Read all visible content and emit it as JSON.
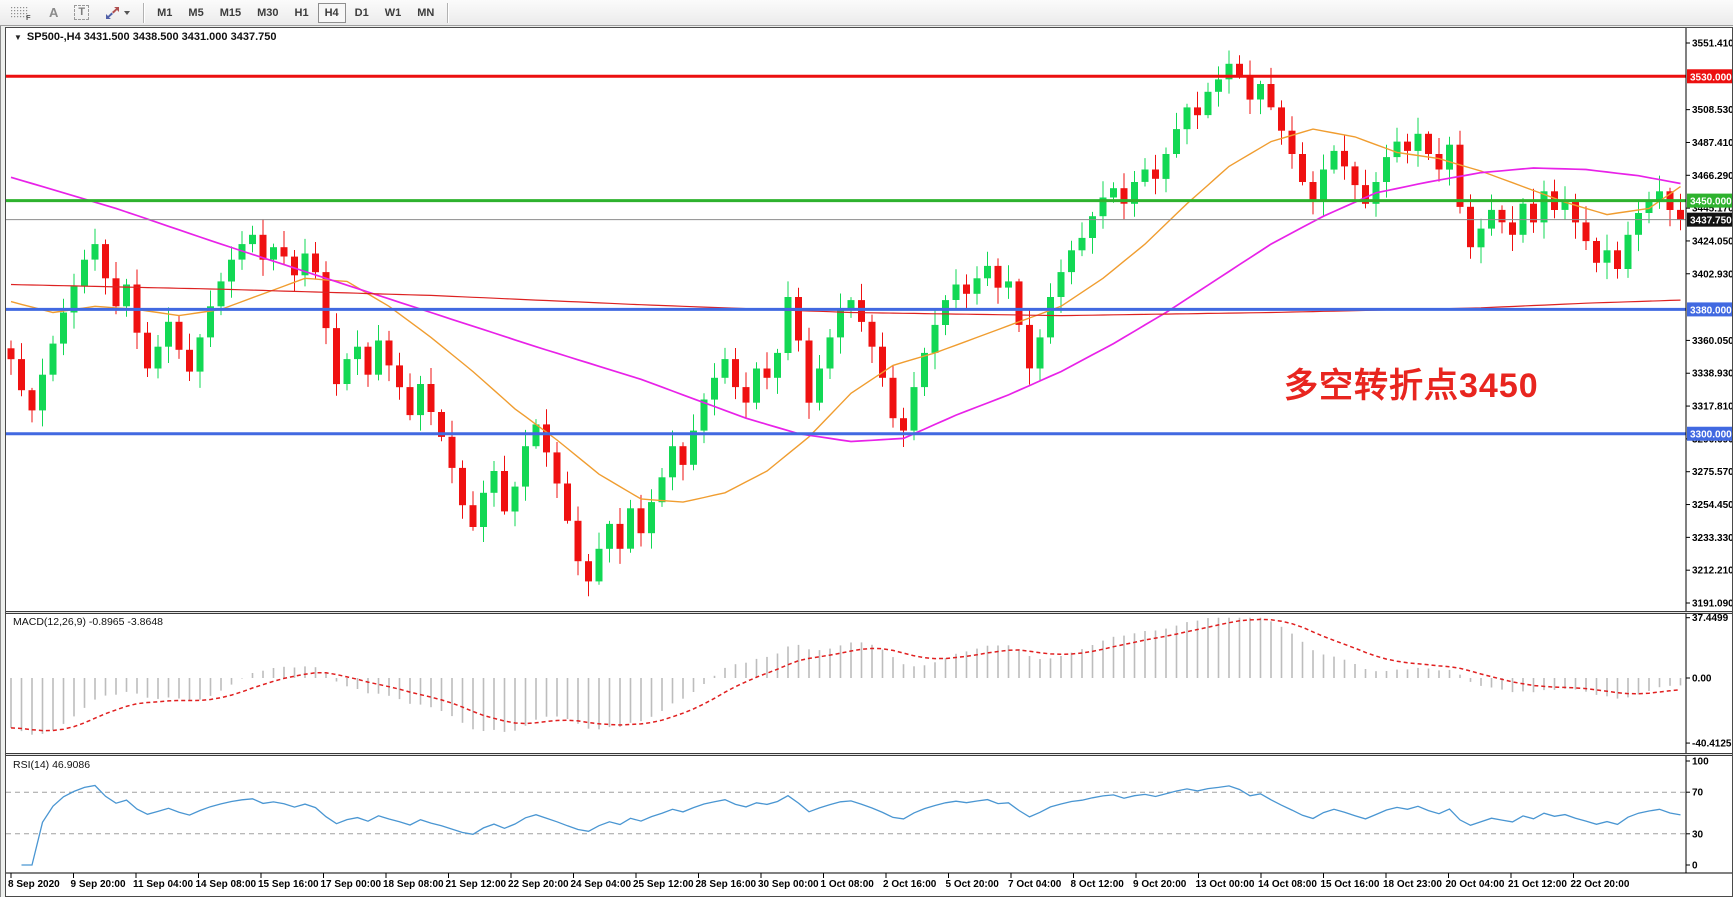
{
  "toolbar": {
    "tools": [
      {
        "name": "chart-grid-f-icon",
        "glyph": "F",
        "style": "grid"
      },
      {
        "name": "font-tool-icon",
        "glyph": "A",
        "style": "plain"
      },
      {
        "name": "text-label-tool-icon",
        "glyph": "T",
        "style": "boxed"
      },
      {
        "name": "arrow-objects-icon",
        "glyph": "",
        "style": "arrows",
        "caret": true
      }
    ],
    "timeframes": [
      "M1",
      "M5",
      "M15",
      "M30",
      "H1",
      "H4",
      "D1",
      "W1",
      "MN"
    ],
    "active_timeframe": "H4"
  },
  "chart": {
    "collapse_glyph": "▼",
    "title": "SP500-,H4  3431.500 3438.500 3431.000 3437.750",
    "symbol": "SP500-",
    "timeframe": "H4",
    "ohlc": {
      "open": "3431.500",
      "high": "3438.500",
      "low": "3431.000",
      "close": "3437.750"
    }
  },
  "indicators": {
    "macd_label": "MACD(12,26,9) -0.8965 -3.8648",
    "rsi_label": "RSI(14) 46.9086"
  },
  "annotation": {
    "text": "多空转折点3450",
    "color": "#e8251f"
  },
  "levels": [
    {
      "price": 3530.0,
      "label": "3530.000",
      "color": "#ec0f0f"
    },
    {
      "price": 3450.0,
      "label": "3450.000",
      "color": "#2eb22e"
    },
    {
      "price": 3380.0,
      "label": "3380.000",
      "color": "#4169e1"
    },
    {
      "price": 3300.0,
      "label": "3300.000",
      "color": "#4169e1"
    }
  ],
  "current_price": {
    "value": 3437.75,
    "label": "3437.750",
    "badge_bg": "#111111"
  },
  "colors": {
    "candle_up": "#12d854",
    "candle_down": "#ef1111",
    "ma_fast": "#f09d30",
    "ma_medium": "#e822e8",
    "ma_slow": "#dd2222",
    "macd_bars": "#bdbdbd",
    "macd_signal": "#e01f1f",
    "rsi_line": "#4a96d2",
    "current_line": "#8c8c8c",
    "axis_text": "#000000"
  },
  "axes": {
    "price_ticks": [
      "3551.410",
      "3508.530",
      "3487.410",
      "3466.290",
      "3445.170",
      "3424.050",
      "3402.930",
      "3360.050",
      "3338.930",
      "3317.810",
      "3296.690",
      "3275.570",
      "3254.450",
      "3233.330",
      "3212.210",
      "3191.090"
    ],
    "macd_ticks": [
      "37.4499",
      "0.00",
      "-40.4125"
    ],
    "rsi_ticks": [
      "100",
      "70",
      "30",
      "0"
    ]
  },
  "chart_data": {
    "type": "candlestick",
    "title": "SP500-,H4",
    "x_labels": [
      "8 Sep 2020",
      "9 Sep 20:00",
      "11 Sep 04:00",
      "14 Sep 08:00",
      "15 Sep 16:00",
      "17 Sep 00:00",
      "18 Sep 08:00",
      "21 Sep 12:00",
      "22 Sep 20:00",
      "24 Sep 04:00",
      "25 Sep 12:00",
      "28 Sep 16:00",
      "30 Sep 00:00",
      "1 Oct 08:00",
      "2 Oct 16:00",
      "5 Oct 20:00",
      "7 Oct 04:00",
      "8 Oct 12:00",
      "9 Oct 20:00",
      "13 Oct 00:00",
      "14 Oct 08:00",
      "15 Oct 16:00",
      "18 Oct 23:00",
      "20 Oct 04:00",
      "21 Oct 12:00",
      "22 Oct 20:00"
    ],
    "price_axis_range": [
      3191.09,
      3551.41
    ],
    "first_open": 3355,
    "closes": [
      3348,
      3328,
      3315,
      3338,
      3358,
      3378,
      3395,
      3412,
      3422,
      3400,
      3382,
      3396,
      3365,
      3342,
      3356,
      3372,
      3354,
      3340,
      3362,
      3382,
      3398,
      3412,
      3422,
      3428,
      3412,
      3420,
      3414,
      3402,
      3416,
      3404,
      3368,
      3332,
      3348,
      3356,
      3338,
      3360,
      3344,
      3330,
      3312,
      3332,
      3314,
      3298,
      3278,
      3254,
      3240,
      3262,
      3276,
      3250,
      3266,
      3292,
      3306,
      3288,
      3268,
      3244,
      3218,
      3205,
      3226,
      3242,
      3226,
      3252,
      3236,
      3256,
      3272,
      3292,
      3280,
      3302,
      3322,
      3336,
      3348,
      3330,
      3320,
      3342,
      3336,
      3352,
      3388,
      3360,
      3320,
      3342,
      3362,
      3380,
      3386,
      3372,
      3356,
      3336,
      3310,
      3302,
      3330,
      3352,
      3370,
      3386,
      3396,
      3390,
      3400,
      3408,
      3394,
      3398,
      3370,
      3342,
      3362,
      3388,
      3404,
      3418,
      3426,
      3440,
      3452,
      3458,
      3448,
      3462,
      3470,
      3464,
      3480,
      3496,
      3510,
      3505,
      3520,
      3528,
      3538,
      3530,
      3515,
      3525,
      3510,
      3495,
      3480,
      3462,
      3450,
      3470,
      3482,
      3472,
      3460,
      3448,
      3462,
      3478,
      3488,
      3482,
      3493,
      3480,
      3470,
      3486,
      3446,
      3420,
      3432,
      3444,
      3436,
      3428,
      3448,
      3436,
      3456,
      3444,
      3450,
      3436,
      3424,
      3410,
      3418,
      3406,
      3428,
      3442,
      3450,
      3456,
      3444,
      3437.75
    ],
    "moving_averages": [
      {
        "name": "ma-fast",
        "color_key": "ma_fast",
        "anchors": [
          [
            0,
            3385
          ],
          [
            4,
            3378
          ],
          [
            8,
            3382
          ],
          [
            12,
            3380
          ],
          [
            16,
            3376
          ],
          [
            20,
            3380
          ],
          [
            24,
            3390
          ],
          [
            28,
            3400
          ],
          [
            32,
            3398
          ],
          [
            36,
            3382
          ],
          [
            40,
            3362
          ],
          [
            44,
            3340
          ],
          [
            48,
            3316
          ],
          [
            52,
            3296
          ],
          [
            56,
            3274
          ],
          [
            60,
            3258
          ],
          [
            64,
            3256
          ],
          [
            68,
            3262
          ],
          [
            72,
            3276
          ],
          [
            76,
            3298
          ],
          [
            80,
            3326
          ],
          [
            84,
            3344
          ],
          [
            88,
            3352
          ],
          [
            92,
            3362
          ],
          [
            96,
            3372
          ],
          [
            100,
            3382
          ],
          [
            104,
            3400
          ],
          [
            108,
            3422
          ],
          [
            112,
            3448
          ],
          [
            116,
            3472
          ],
          [
            120,
            3488
          ],
          [
            124,
            3496
          ],
          [
            128,
            3491
          ],
          [
            132,
            3481
          ],
          [
            136,
            3477
          ],
          [
            140,
            3469
          ],
          [
            144,
            3459
          ],
          [
            148,
            3449
          ],
          [
            152,
            3441
          ],
          [
            156,
            3445
          ],
          [
            159,
            3459
          ]
        ]
      },
      {
        "name": "ma-medium",
        "color_key": "ma_medium",
        "anchors": [
          [
            0,
            3465
          ],
          [
            10,
            3445
          ],
          [
            20,
            3422
          ],
          [
            30,
            3400
          ],
          [
            40,
            3378
          ],
          [
            50,
            3356
          ],
          [
            60,
            3335
          ],
          [
            70,
            3310
          ],
          [
            75,
            3300
          ],
          [
            80,
            3295
          ],
          [
            85,
            3297
          ],
          [
            90,
            3312
          ],
          [
            95,
            3325
          ],
          [
            100,
            3340
          ],
          [
            105,
            3358
          ],
          [
            110,
            3378
          ],
          [
            115,
            3400
          ],
          [
            120,
            3422
          ],
          [
            125,
            3440
          ],
          [
            130,
            3455
          ],
          [
            135,
            3462
          ],
          [
            140,
            3468
          ],
          [
            145,
            3471
          ],
          [
            150,
            3470
          ],
          [
            155,
            3466
          ],
          [
            159,
            3461
          ]
        ]
      },
      {
        "name": "ma-slow",
        "color_key": "ma_slow",
        "anchors": [
          [
            0,
            3396
          ],
          [
            20,
            3393
          ],
          [
            40,
            3389
          ],
          [
            60,
            3383
          ],
          [
            80,
            3378
          ],
          [
            100,
            3376
          ],
          [
            120,
            3378
          ],
          [
            140,
            3381
          ],
          [
            150,
            3384
          ],
          [
            159,
            3386
          ]
        ]
      }
    ],
    "macd": {
      "params": [
        12,
        26,
        9
      ],
      "last_macd": -0.8965,
      "last_signal": -3.8648,
      "axis": [
        -40.4125,
        37.4499
      ],
      "seed12": 40,
      "seed26": 70
    },
    "rsi": {
      "period": 14,
      "last": 46.9086,
      "axis": [
        0,
        100
      ],
      "guides": [
        70,
        30
      ]
    }
  }
}
